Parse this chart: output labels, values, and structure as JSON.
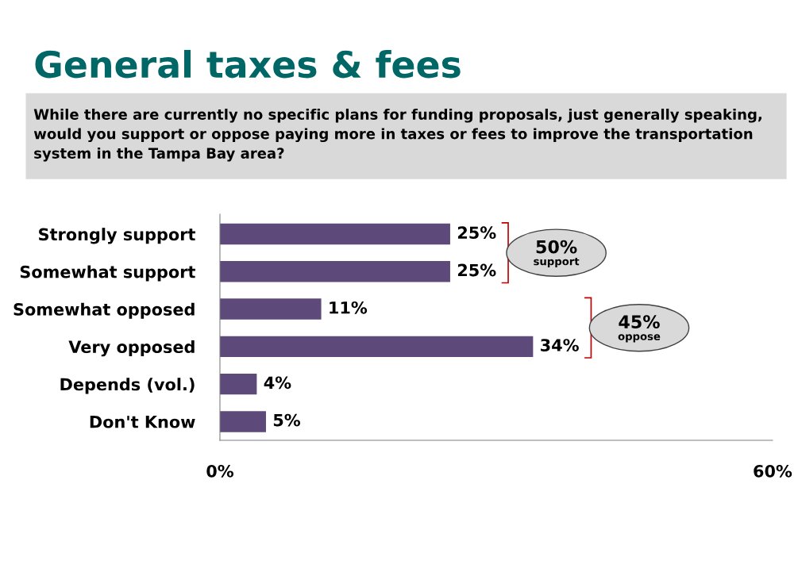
{
  "chart_data": {
    "type": "bar",
    "orientation": "horizontal",
    "title": "General taxes & fees",
    "subtitle": "While there are currently no specific plans for funding proposals, just generally speaking, would you support or oppose paying more in taxes or fees to improve the transportation system in the Tampa Bay area?",
    "categories": [
      "Strongly support",
      "Somewhat support",
      "Somewhat opposed",
      "Very opposed",
      "Depends (vol.)",
      "Don't Know"
    ],
    "values": [
      25,
      25,
      11,
      34,
      4,
      5
    ],
    "value_labels": [
      "25%",
      "25%",
      "11%",
      "34%",
      "4%",
      "5%"
    ],
    "color": "#5e4a7a",
    "xlim": [
      0,
      60
    ],
    "xticks": [
      {
        "value": 0,
        "label": "0%"
      },
      {
        "value": 60,
        "label": "60%"
      }
    ],
    "grid": false,
    "annotations": [
      "50%\nsupport",
      "45%\noppose"
    ]
  }
}
